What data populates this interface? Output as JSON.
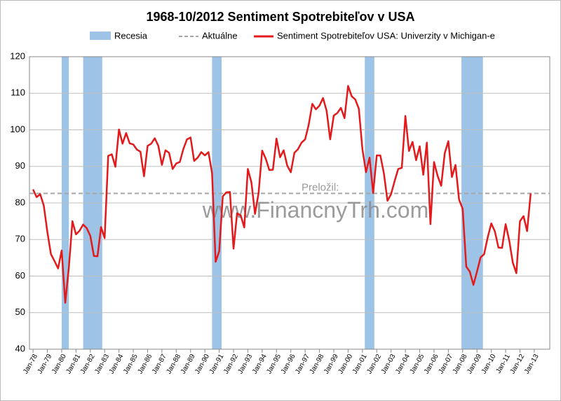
{
  "chart_data": {
    "type": "line",
    "title": "1968-10/2012 Sentiment Spotrebiteľov  v USA",
    "recession_name": "Recesia",
    "recession_color": "#9dc3e6",
    "recessions": [
      [
        "1980-01",
        "1980-07"
      ],
      [
        "1981-07",
        "1982-11"
      ],
      [
        "1990-07",
        "1991-03"
      ],
      [
        "2001-03",
        "2001-11"
      ],
      [
        "2007-12",
        "2009-06"
      ]
    ],
    "reference": {
      "name": "Aktuálne",
      "value": 82.6,
      "color": "#a6a6a6"
    },
    "annotations": [
      "Preložil:",
      "www.FinancnyTrh.com"
    ],
    "xlim": [
      "1977-10",
      "2014-02"
    ],
    "ylim": [
      40,
      120
    ],
    "yticks": [
      40,
      50,
      60,
      70,
      80,
      90,
      100,
      110,
      120
    ],
    "grid": true,
    "xticks": [
      {
        "value": "1978-01",
        "label": "Jan-78"
      },
      {
        "value": "1979-01",
        "label": "Jan-79"
      },
      {
        "value": "1980-01",
        "label": "Jan-80"
      },
      {
        "value": "1981-01",
        "label": "Jan-81"
      },
      {
        "value": "1982-01",
        "label": "Jan-82"
      },
      {
        "value": "1983-01",
        "label": "Jan-83"
      },
      {
        "value": "1984-01",
        "label": "Jan-84"
      },
      {
        "value": "1985-01",
        "label": "Jan-85"
      },
      {
        "value": "1986-01",
        "label": "Jan-86"
      },
      {
        "value": "1987-01",
        "label": "Jan-87"
      },
      {
        "value": "1988-01",
        "label": "Jan-88"
      },
      {
        "value": "1989-01",
        "label": "Jan-89"
      },
      {
        "value": "1990-01",
        "label": "Jan-90"
      },
      {
        "value": "1991-01",
        "label": "Jan-91"
      },
      {
        "value": "1992-01",
        "label": "Jan-92"
      },
      {
        "value": "1993-01",
        "label": "Jan-93"
      },
      {
        "value": "1994-01",
        "label": "Jan-94"
      },
      {
        "value": "1995-01",
        "label": "Jan-95"
      },
      {
        "value": "1996-01",
        "label": "Jan-96"
      },
      {
        "value": "1997-01",
        "label": "Jan-97"
      },
      {
        "value": "1998-01",
        "label": "Jan-98"
      },
      {
        "value": "1999-01",
        "label": "Jan-99"
      },
      {
        "value": "2000-01",
        "label": "Jan-00"
      },
      {
        "value": "2001-01",
        "label": "Jan-01"
      },
      {
        "value": "2002-01",
        "label": "Jan-02"
      },
      {
        "value": "2003-01",
        "label": "Jan-03"
      },
      {
        "value": "2004-01",
        "label": "Jan-04"
      },
      {
        "value": "2005-01",
        "label": "Jan-05"
      },
      {
        "value": "2006-01",
        "label": "Jan-06"
      },
      {
        "value": "2007-01",
        "label": "Jan-07"
      },
      {
        "value": "2008-01",
        "label": "Jan-08"
      },
      {
        "value": "2009-01",
        "label": "Jan-09"
      },
      {
        "value": "2010-01",
        "label": "Jan-10"
      },
      {
        "value": "2011-01",
        "label": "Jan-11"
      },
      {
        "value": "2012-01",
        "label": "Jan-12"
      },
      {
        "value": "2013-01",
        "label": "Jan-13"
      }
    ],
    "x": [
      "1978-01",
      "1978-04",
      "1978-07",
      "1978-10",
      "1979-01",
      "1979-04",
      "1979-07",
      "1979-10",
      "1980-01",
      "1980-04",
      "1980-07",
      "1980-10",
      "1981-01",
      "1981-04",
      "1981-07",
      "1981-10",
      "1982-01",
      "1982-04",
      "1982-07",
      "1982-10",
      "1983-01",
      "1983-04",
      "1983-07",
      "1983-10",
      "1984-01",
      "1984-04",
      "1984-07",
      "1984-10",
      "1985-01",
      "1985-04",
      "1985-07",
      "1985-10",
      "1986-01",
      "1986-04",
      "1986-07",
      "1986-10",
      "1987-01",
      "1987-04",
      "1987-07",
      "1987-10",
      "1988-01",
      "1988-04",
      "1988-07",
      "1988-10",
      "1989-01",
      "1989-04",
      "1989-07",
      "1989-10",
      "1990-01",
      "1990-04",
      "1990-07",
      "1990-10",
      "1991-01",
      "1991-04",
      "1991-07",
      "1991-10",
      "1992-01",
      "1992-04",
      "1992-07",
      "1992-10",
      "1993-01",
      "1993-04",
      "1993-07",
      "1993-10",
      "1994-01",
      "1994-04",
      "1994-07",
      "1994-10",
      "1995-01",
      "1995-04",
      "1995-07",
      "1995-10",
      "1996-01",
      "1996-04",
      "1996-07",
      "1996-10",
      "1997-01",
      "1997-04",
      "1997-07",
      "1997-10",
      "1998-01",
      "1998-04",
      "1998-07",
      "1998-10",
      "1999-01",
      "1999-04",
      "1999-07",
      "1999-10",
      "2000-01",
      "2000-04",
      "2000-07",
      "2000-10",
      "2001-01",
      "2001-04",
      "2001-07",
      "2001-10",
      "2002-01",
      "2002-04",
      "2002-07",
      "2002-10",
      "2003-01",
      "2003-04",
      "2003-07",
      "2003-10",
      "2004-01",
      "2004-04",
      "2004-07",
      "2004-10",
      "2005-01",
      "2005-04",
      "2005-07",
      "2005-10",
      "2006-01",
      "2006-04",
      "2006-07",
      "2006-10",
      "2007-01",
      "2007-04",
      "2007-07",
      "2007-10",
      "2008-01",
      "2008-04",
      "2008-07",
      "2008-10",
      "2009-01",
      "2009-04",
      "2009-07",
      "2009-10",
      "2010-01",
      "2010-04",
      "2010-07",
      "2010-10",
      "2011-01",
      "2011-04",
      "2011-07",
      "2011-10",
      "2012-01",
      "2012-04",
      "2012-07",
      "2012-10"
    ],
    "series": [
      {
        "name": "Sentiment Spotrebiteľov USA: Univerzity v Michigan-e",
        "color": "#e31a1c",
        "values": [
          83.7,
          81.6,
          82.4,
          79.3,
          72.1,
          66.0,
          64.1,
          62.1,
          67.0,
          52.7,
          62.3,
          75.0,
          71.4,
          72.4,
          74.1,
          73.1,
          71.0,
          65.5,
          65.4,
          73.4,
          70.4,
          92.9,
          93.3,
          89.9,
          100.1,
          96.2,
          99.1,
          96.3,
          96.0,
          94.6,
          94.0,
          87.3,
          95.6,
          96.2,
          97.7,
          95.6,
          90.4,
          94.4,
          93.7,
          89.3,
          90.8,
          91.2,
          94.8,
          97.4,
          97.9,
          91.5,
          92.4,
          93.9,
          93.0,
          93.9,
          88.2,
          63.9,
          66.8,
          81.8,
          82.9,
          83.0,
          67.5,
          77.2,
          76.6,
          73.3,
          89.3,
          85.6,
          77.0,
          82.7,
          94.3,
          92.1,
          89.0,
          89.1,
          97.6,
          92.5,
          94.4,
          90.2,
          88.4,
          93.7,
          94.7,
          96.5,
          97.4,
          101.4,
          107.1,
          105.6,
          106.6,
          108.7,
          105.2,
          97.4,
          103.9,
          104.6,
          106.0,
          103.2,
          112.0,
          109.2,
          108.3,
          105.8,
          94.7,
          88.4,
          92.4,
          82.7,
          93.0,
          93.0,
          88.1,
          80.6,
          82.4,
          86.0,
          89.3,
          89.6,
          103.8,
          94.2,
          96.7,
          91.7,
          95.5,
          87.7,
          96.5,
          74.2,
          91.2,
          87.4,
          84.7,
          93.6,
          96.9,
          87.1,
          90.4,
          80.9,
          78.4,
          62.6,
          61.2,
          57.6,
          61.2,
          65.1,
          66.0,
          70.6,
          74.4,
          72.2,
          67.8,
          67.7,
          74.2,
          69.8,
          63.7,
          60.8,
          75.0,
          76.4,
          72.3,
          82.6
        ]
      }
    ]
  }
}
